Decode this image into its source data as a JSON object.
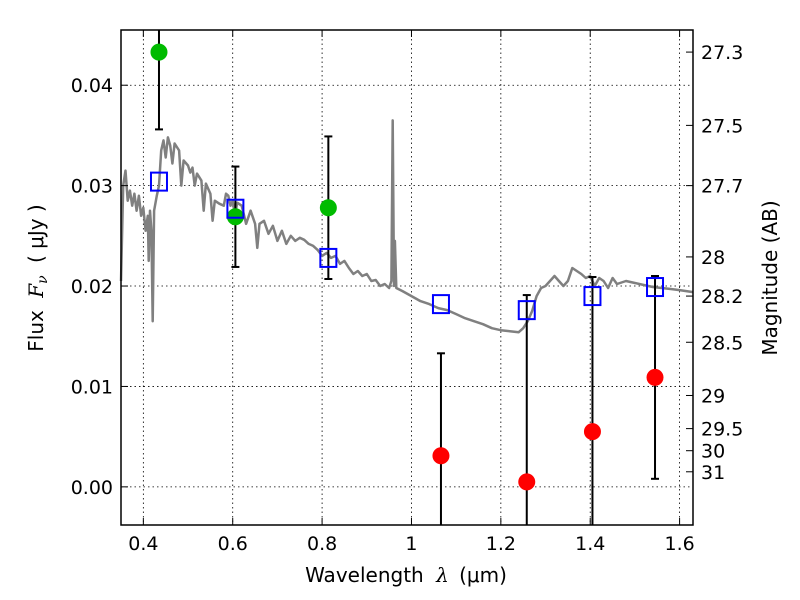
{
  "chart_data": {
    "type": "scatter",
    "xlabel_main": "Wavelength",
    "xlabel_lambda": "λ",
    "xlabel_unit": "(μm)",
    "ylabel_main": "Flux",
    "ylabel_symbol": "F",
    "ylabel_sub": "ν",
    "ylabel_unit": "( μJy )",
    "y2label": "Magnitude (AB)",
    "xlim": [
      0.35,
      1.63
    ],
    "ylim": [
      -0.0038,
      0.0455
    ],
    "grid": true,
    "x_ticks": [
      0.4,
      0.6,
      0.8,
      1.0,
      1.2,
      1.4,
      1.6
    ],
    "x_tick_labels": [
      "0.4",
      "0.6",
      "0.8",
      "1",
      "1.2",
      "1.4",
      "1.6"
    ],
    "y_ticks": [
      0.0,
      0.01,
      0.02,
      0.03,
      0.04
    ],
    "y_tick_labels": [
      "0.00",
      "0.01",
      "0.02",
      "0.03",
      "0.04"
    ],
    "mag_ticks": [
      {
        "label": "27.3",
        "flux": 0.0433
      },
      {
        "label": "27.5",
        "flux": 0.036
      },
      {
        "label": "27.7",
        "flux": 0.03
      },
      {
        "label": "28",
        "flux": 0.0229
      },
      {
        "label": "28.2",
        "flux": 0.019
      },
      {
        "label": "28.5",
        "flux": 0.0144
      },
      {
        "label": "29",
        "flux": 0.0091
      },
      {
        "label": "29.5",
        "flux": 0.0058
      },
      {
        "label": "30",
        "flux": 0.0036
      },
      {
        "label": "31",
        "flux": 0.0015
      }
    ],
    "template_spectrum": {
      "color": "#808080",
      "points": [
        [
          0.35,
          0.0205
        ],
        [
          0.355,
          0.03
        ],
        [
          0.36,
          0.0315
        ],
        [
          0.365,
          0.0285
        ],
        [
          0.37,
          0.0295
        ],
        [
          0.375,
          0.028
        ],
        [
          0.38,
          0.0292
        ],
        [
          0.385,
          0.0275
        ],
        [
          0.39,
          0.029
        ],
        [
          0.395,
          0.027
        ],
        [
          0.4,
          0.0278
        ],
        [
          0.405,
          0.0255
        ],
        [
          0.41,
          0.027
        ],
        [
          0.412,
          0.0225
        ],
        [
          0.415,
          0.0275
        ],
        [
          0.418,
          0.0255
        ],
        [
          0.421,
          0.0165
        ],
        [
          0.424,
          0.0275
        ],
        [
          0.43,
          0.029
        ],
        [
          0.435,
          0.03
        ],
        [
          0.44,
          0.0335
        ],
        [
          0.445,
          0.0345
        ],
        [
          0.45,
          0.0328
        ],
        [
          0.455,
          0.0348
        ],
        [
          0.46,
          0.034
        ],
        [
          0.465,
          0.0322
        ],
        [
          0.47,
          0.0342
        ],
        [
          0.48,
          0.0335
        ],
        [
          0.485,
          0.03
        ],
        [
          0.49,
          0.0325
        ],
        [
          0.5,
          0.032
        ],
        [
          0.505,
          0.0313
        ],
        [
          0.51,
          0.0318
        ],
        [
          0.515,
          0.03
        ],
        [
          0.52,
          0.0312
        ],
        [
          0.53,
          0.0305
        ],
        [
          0.535,
          0.0275
        ],
        [
          0.54,
          0.0302
        ],
        [
          0.55,
          0.0292
        ],
        [
          0.555,
          0.0265
        ],
        [
          0.56,
          0.0285
        ],
        [
          0.57,
          0.0282
        ],
        [
          0.58,
          0.028
        ],
        [
          0.585,
          0.0292
        ],
        [
          0.59,
          0.029
        ],
        [
          0.595,
          0.028
        ],
        [
          0.6,
          0.0285
        ],
        [
          0.605,
          0.027
        ],
        [
          0.61,
          0.0283
        ],
        [
          0.62,
          0.028
        ],
        [
          0.63,
          0.0262
        ],
        [
          0.64,
          0.0275
        ],
        [
          0.65,
          0.0262
        ],
        [
          0.655,
          0.0238
        ],
        [
          0.66,
          0.0262
        ],
        [
          0.67,
          0.0265
        ],
        [
          0.68,
          0.0252
        ],
        [
          0.69,
          0.026
        ],
        [
          0.7,
          0.0245
        ],
        [
          0.71,
          0.0255
        ],
        [
          0.72,
          0.0242
        ],
        [
          0.73,
          0.025
        ],
        [
          0.74,
          0.0245
        ],
        [
          0.75,
          0.0248
        ],
        [
          0.76,
          0.0246
        ],
        [
          0.77,
          0.0242
        ],
        [
          0.78,
          0.024
        ],
        [
          0.79,
          0.0236
        ],
        [
          0.8,
          0.023
        ],
        [
          0.81,
          0.0233
        ],
        [
          0.82,
          0.0228
        ],
        [
          0.83,
          0.023
        ],
        [
          0.84,
          0.0222
        ],
        [
          0.85,
          0.0225
        ],
        [
          0.86,
          0.0218
        ],
        [
          0.87,
          0.0212
        ],
        [
          0.88,
          0.0215
        ],
        [
          0.89,
          0.021
        ],
        [
          0.9,
          0.0212
        ],
        [
          0.91,
          0.0205
        ],
        [
          0.92,
          0.0206
        ],
        [
          0.93,
          0.02
        ],
        [
          0.94,
          0.0202
        ],
        [
          0.95,
          0.0198
        ],
        [
          0.955,
          0.0205
        ],
        [
          0.958,
          0.0365
        ],
        [
          0.961,
          0.02
        ],
        [
          0.963,
          0.0245
        ],
        [
          0.966,
          0.0198
        ],
        [
          0.98,
          0.0195
        ],
        [
          1.0,
          0.019
        ],
        [
          1.02,
          0.0185
        ],
        [
          1.04,
          0.0182
        ],
        [
          1.06,
          0.0178
        ],
        [
          1.08,
          0.0176
        ],
        [
          1.1,
          0.0172
        ],
        [
          1.12,
          0.0168
        ],
        [
          1.14,
          0.0165
        ],
        [
          1.16,
          0.0162
        ],
        [
          1.18,
          0.0158
        ],
        [
          1.2,
          0.0156
        ],
        [
          1.22,
          0.0155
        ],
        [
          1.24,
          0.0154
        ],
        [
          1.25,
          0.0158
        ],
        [
          1.26,
          0.0165
        ],
        [
          1.27,
          0.0175
        ],
        [
          1.28,
          0.019
        ],
        [
          1.29,
          0.0198
        ],
        [
          1.3,
          0.02
        ],
        [
          1.31,
          0.0205
        ],
        [
          1.32,
          0.021
        ],
        [
          1.33,
          0.0205
        ],
        [
          1.34,
          0.02
        ],
        [
          1.35,
          0.0205
        ],
        [
          1.36,
          0.0218
        ],
        [
          1.37,
          0.0215
        ],
        [
          1.38,
          0.0212
        ],
        [
          1.39,
          0.0208
        ],
        [
          1.4,
          0.021
        ],
        [
          1.41,
          0.02
        ],
        [
          1.42,
          0.0208
        ],
        [
          1.43,
          0.0205
        ],
        [
          1.44,
          0.0198
        ],
        [
          1.45,
          0.0208
        ],
        [
          1.46,
          0.0202
        ],
        [
          1.48,
          0.0205
        ],
        [
          1.5,
          0.0203
        ],
        [
          1.52,
          0.0201
        ],
        [
          1.54,
          0.0199
        ],
        [
          1.56,
          0.0198
        ],
        [
          1.58,
          0.0197
        ],
        [
          1.6,
          0.0196
        ],
        [
          1.63,
          0.0194
        ]
      ]
    },
    "series": [
      {
        "marker": "circle",
        "color": "#00bb00",
        "points": [
          {
            "x": 0.435,
            "y": 0.0433,
            "err": 0.0077
          },
          {
            "x": 0.606,
            "y": 0.0269,
            "err": 0.005
          },
          {
            "x": 0.814,
            "y": 0.0278,
            "err": 0.0071
          }
        ]
      },
      {
        "marker": "circle",
        "color": "#ff0000",
        "points": [
          {
            "x": 1.066,
            "y": 0.0031,
            "err": 0.0102
          },
          {
            "x": 1.258,
            "y": 0.0005,
            "err": 0.0186
          },
          {
            "x": 1.405,
            "y": 0.0055,
            "err": 0.0154
          },
          {
            "x": 1.545,
            "y": 0.0109,
            "err": 0.0101
          }
        ]
      },
      {
        "marker": "open-square",
        "color": "#0000ff",
        "points": [
          {
            "x": 0.435,
            "y": 0.0304
          },
          {
            "x": 0.606,
            "y": 0.0277
          },
          {
            "x": 0.814,
            "y": 0.0228
          },
          {
            "x": 1.066,
            "y": 0.0182
          },
          {
            "x": 1.258,
            "y": 0.0176
          },
          {
            "x": 1.405,
            "y": 0.019
          },
          {
            "x": 1.545,
            "y": 0.0199
          }
        ]
      }
    ]
  }
}
